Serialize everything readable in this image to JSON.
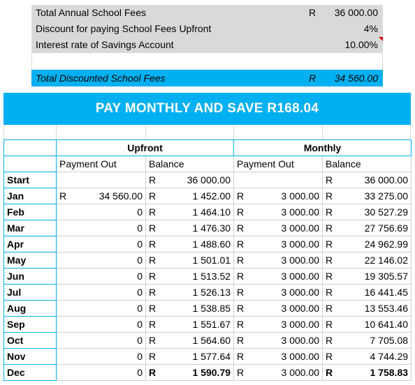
{
  "summary": {
    "rows": [
      {
        "label": "Total Annual School Fees",
        "currency": "R",
        "value": "36 000.00"
      },
      {
        "label": "Discount for paying School Fees Upfront",
        "currency": "",
        "value": "4%"
      },
      {
        "label": "Interest rate of Savings Account",
        "currency": "",
        "value": "10.00%"
      }
    ],
    "total": {
      "label": "Total Discounted School Fees",
      "currency": "R",
      "value": "34 560.00"
    }
  },
  "banner": "PAY MONTHLY AND SAVE R168.04",
  "table": {
    "group_headers": {
      "upfront": "Upfront",
      "monthly": "Monthly"
    },
    "sub_headers": {
      "payment_out": "Payment Out",
      "balance": "Balance"
    },
    "currency": "R",
    "rows": [
      {
        "month": "Start",
        "up_pay_cur": "",
        "up_pay": "",
        "up_bal_cur": "R",
        "up_bal": "36 000.00",
        "mo_pay_cur": "",
        "mo_pay": "",
        "mo_bal_cur": "R",
        "mo_bal": "36 000.00"
      },
      {
        "month": "Jan",
        "up_pay_cur": "R",
        "up_pay": "34 560.00",
        "up_bal_cur": "R",
        "up_bal": "1 452.00",
        "mo_pay_cur": "R",
        "mo_pay": "3 000.00",
        "mo_bal_cur": "R",
        "mo_bal": "33 275.00"
      },
      {
        "month": "Feb",
        "up_pay_cur": "",
        "up_pay": "0",
        "up_bal_cur": "R",
        "up_bal": "1 464.10",
        "mo_pay_cur": "R",
        "mo_pay": "3 000.00",
        "mo_bal_cur": "R",
        "mo_bal": "30 527.29"
      },
      {
        "month": "Mar",
        "up_pay_cur": "",
        "up_pay": "0",
        "up_bal_cur": "R",
        "up_bal": "1 476.30",
        "mo_pay_cur": "R",
        "mo_pay": "3 000.00",
        "mo_bal_cur": "R",
        "mo_bal": "27 756.69"
      },
      {
        "month": "Apr",
        "up_pay_cur": "",
        "up_pay": "0",
        "up_bal_cur": "R",
        "up_bal": "1 488.60",
        "mo_pay_cur": "R",
        "mo_pay": "3 000.00",
        "mo_bal_cur": "R",
        "mo_bal": "24 962.99"
      },
      {
        "month": "May",
        "up_pay_cur": "",
        "up_pay": "0",
        "up_bal_cur": "R",
        "up_bal": "1 501.01",
        "mo_pay_cur": "R",
        "mo_pay": "3 000.00",
        "mo_bal_cur": "R",
        "mo_bal": "22 146.02"
      },
      {
        "month": "Jun",
        "up_pay_cur": "",
        "up_pay": "0",
        "up_bal_cur": "R",
        "up_bal": "1 513.52",
        "mo_pay_cur": "R",
        "mo_pay": "3 000.00",
        "mo_bal_cur": "R",
        "mo_bal": "19 305.57"
      },
      {
        "month": "Jul",
        "up_pay_cur": "",
        "up_pay": "0",
        "up_bal_cur": "R",
        "up_bal": "1 526.13",
        "mo_pay_cur": "R",
        "mo_pay": "3 000.00",
        "mo_bal_cur": "R",
        "mo_bal": "16 441.45"
      },
      {
        "month": "Aug",
        "up_pay_cur": "",
        "up_pay": "0",
        "up_bal_cur": "R",
        "up_bal": "1 538.85",
        "mo_pay_cur": "R",
        "mo_pay": "3 000.00",
        "mo_bal_cur": "R",
        "mo_bal": "13 553.46"
      },
      {
        "month": "Sep",
        "up_pay_cur": "",
        "up_pay": "0",
        "up_bal_cur": "R",
        "up_bal": "1 551.67",
        "mo_pay_cur": "R",
        "mo_pay": "3 000.00",
        "mo_bal_cur": "R",
        "mo_bal": "10 641.40"
      },
      {
        "month": "Oct",
        "up_pay_cur": "",
        "up_pay": "0",
        "up_bal_cur": "R",
        "up_bal": "1 564.60",
        "mo_pay_cur": "R",
        "mo_pay": "3 000.00",
        "mo_bal_cur": "R",
        "mo_bal": "7 705.08"
      },
      {
        "month": "Nov",
        "up_pay_cur": "",
        "up_pay": "0",
        "up_bal_cur": "R",
        "up_bal": "1 577.64",
        "mo_pay_cur": "R",
        "mo_pay": "3 000.00",
        "mo_bal_cur": "R",
        "mo_bal": "4 744.29"
      },
      {
        "month": "Dec",
        "up_pay_cur": "",
        "up_pay": "0",
        "up_bal_cur": "R",
        "up_bal": "1 590.79",
        "mo_pay_cur": "R",
        "mo_pay": "3 000.00",
        "mo_bal_cur": "R",
        "mo_bal": "1 758.83"
      }
    ]
  },
  "colors": {
    "accent": "#00b0f0",
    "summary_bg": "#d9d9d9",
    "comment_marker": "#e00000"
  }
}
